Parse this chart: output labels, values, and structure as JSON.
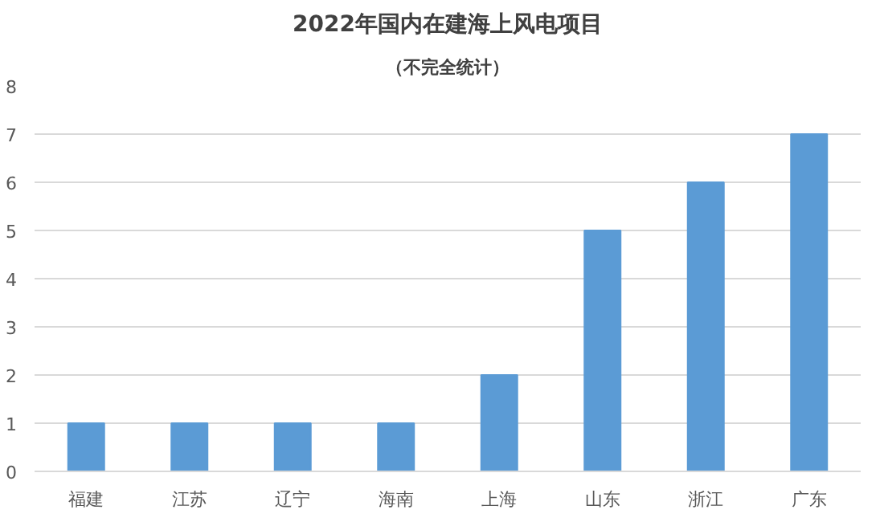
{
  "chart_data": {
    "type": "bar",
    "title": "2022年国内在建海上风电项目",
    "subtitle": "（不完全统计）",
    "categories": [
      "福建",
      "江苏",
      "辽宁",
      "海南",
      "上海",
      "山东",
      "浙江",
      "广东"
    ],
    "values": [
      1,
      1,
      1,
      1,
      2,
      5,
      6,
      7
    ],
    "color": "#5b9bd5",
    "ylim": [
      0,
      8
    ],
    "yticks": [
      0,
      1,
      2,
      3,
      4,
      5,
      6,
      7,
      8
    ],
    "grid": "y"
  }
}
